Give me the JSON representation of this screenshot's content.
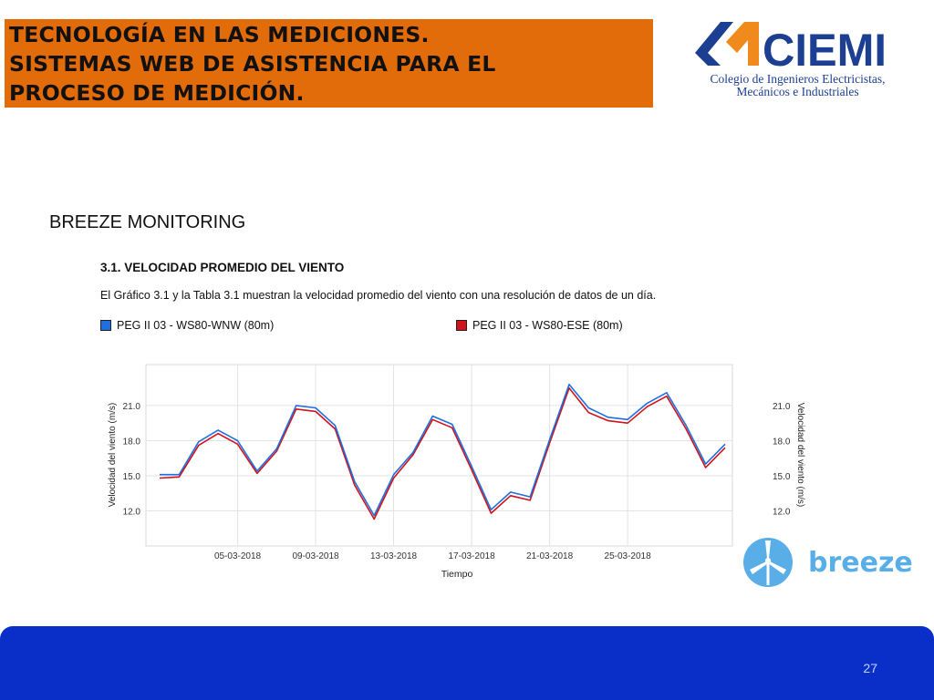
{
  "slide": {
    "title_lines": [
      "TECNOLOGÍA EN LAS MEDICIONES.",
      "SISTEMAS WEB DE ASISTENCIA PARA EL",
      "PROCESO DE MEDICIÓN."
    ],
    "logo_text": "CIEMI",
    "logo_subtitle_1": "Colegio de Ingenieros Electricistas,",
    "logo_subtitle_2": "Mecánicos e Industriales",
    "section_title": "BREEZE MONITORING",
    "chart_heading": "3.1. VELOCIDAD PROMEDIO DEL VIENTO",
    "chart_description": "El Gráfico 3.1 y la Tabla 3.1 muestran la velocidad promedio del viento con una resolución de datos de un día.",
    "breeze_logo_text": "breeze",
    "page_number": "27",
    "colors": {
      "title_bg": "#e36c0a",
      "footer_bg": "#0a2fc9",
      "ciemi_blue": "#1d3f91",
      "ciemi_orange": "#f08a1d",
      "breeze_blue": "#5aaee8"
    }
  },
  "chart_data": {
    "type": "line",
    "xlabel": "Tiempo",
    "ylabel_left": "Velocidad del viento (m/s)",
    "ylabel_right": "Velocidad del viento (m/s)",
    "x_tick_labels": [
      "05-03-2018",
      "09-03-2018",
      "13-03-2018",
      "17-03-2018",
      "21-03-2018",
      "25-03-2018"
    ],
    "y_ticks": [
      12.0,
      15.0,
      18.0,
      21.0
    ],
    "y_tick_labels": [
      "12.0",
      "15.0",
      "18.0",
      "21.0"
    ],
    "ylim": [
      9.0,
      24.5
    ],
    "grid": true,
    "legend_position": "top",
    "x": [
      "01-03-2018",
      "02-03-2018",
      "03-03-2018",
      "04-03-2018",
      "05-03-2018",
      "06-03-2018",
      "07-03-2018",
      "08-03-2018",
      "09-03-2018",
      "10-03-2018",
      "11-03-2018",
      "12-03-2018",
      "13-03-2018",
      "14-03-2018",
      "15-03-2018",
      "16-03-2018",
      "17-03-2018",
      "18-03-2018",
      "19-03-2018",
      "20-03-2018",
      "21-03-2018",
      "22-03-2018",
      "23-03-2018",
      "24-03-2018",
      "25-03-2018",
      "26-03-2018",
      "27-03-2018",
      "28-03-2018",
      "29-03-2018",
      "30-03-2018"
    ],
    "series": [
      {
        "name": "PEG II 03 - WS80-WNW (80m)",
        "color": "#1f6fe0",
        "values": [
          15.1,
          15.1,
          17.9,
          18.9,
          18.0,
          15.4,
          17.3,
          21.0,
          20.8,
          19.3,
          14.5,
          11.6,
          15.1,
          17.0,
          20.1,
          19.4,
          15.8,
          12.1,
          13.6,
          13.2,
          18.1,
          22.8,
          20.8,
          20.0,
          19.8,
          21.2,
          22.1,
          19.3,
          16.0,
          17.7
        ]
      },
      {
        "name": "PEG II 03 - WS80-ESE (80m)",
        "color": "#d0121b",
        "values": [
          14.8,
          14.9,
          17.6,
          18.6,
          17.7,
          15.2,
          17.1,
          20.7,
          20.5,
          19.0,
          14.2,
          11.3,
          14.8,
          16.8,
          19.8,
          19.1,
          15.5,
          11.8,
          13.3,
          12.9,
          17.8,
          22.5,
          20.4,
          19.7,
          19.5,
          20.9,
          21.8,
          19.0,
          15.7,
          17.4
        ]
      }
    ]
  }
}
